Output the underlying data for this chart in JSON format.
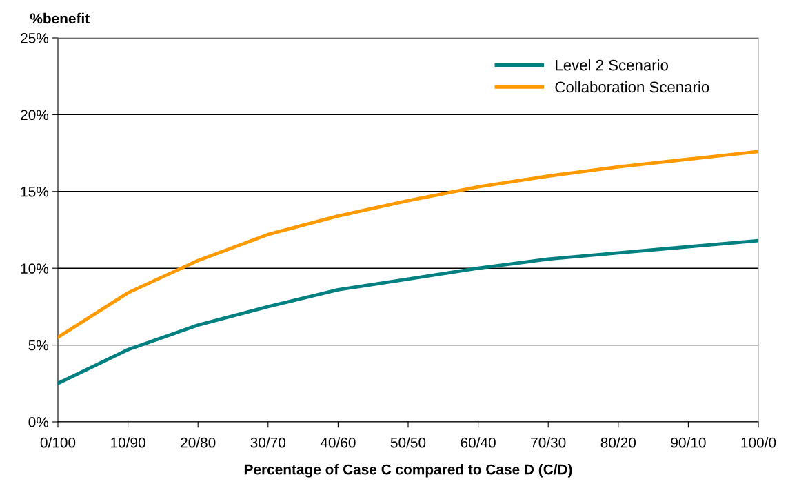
{
  "chart_data": {
    "type": "line",
    "ylabel": "%benefit",
    "xlabel": "Percentage of Case C compared to Case D (C/D)",
    "categories": [
      "0/100",
      "10/90",
      "20/80",
      "30/70",
      "40/60",
      "50/50",
      "60/40",
      "70/30",
      "80/20",
      "90/10",
      "100/0"
    ],
    "series": [
      {
        "name": "Level 2 Scenario",
        "color": "#008080",
        "values": [
          2.5,
          4.7,
          6.3,
          7.5,
          8.6,
          9.3,
          10.0,
          10.6,
          11.0,
          11.4,
          11.8
        ]
      },
      {
        "name": "Collaboration Scenario",
        "color": "#ff9900",
        "values": [
          5.5,
          8.4,
          10.5,
          12.2,
          13.4,
          14.4,
          15.3,
          16.0,
          16.6,
          17.1,
          17.6
        ]
      }
    ],
    "ylim": [
      0,
      25
    ],
    "yticks": [
      {
        "value": 0,
        "label": "0%"
      },
      {
        "value": 5,
        "label": "5%"
      },
      {
        "value": 10,
        "label": "10%"
      },
      {
        "value": 15,
        "label": "15%"
      },
      {
        "value": 20,
        "label": "20%"
      },
      {
        "value": 25,
        "label": "25%"
      }
    ],
    "grid": "y",
    "legend": "top right",
    "marker": "none",
    "line_style": "solid"
  }
}
